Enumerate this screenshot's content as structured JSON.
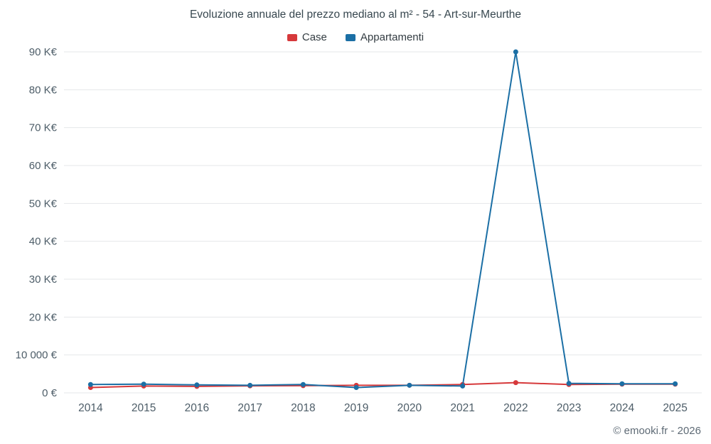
{
  "title": "Evoluzione annuale del prezzo mediano al m² - 54 - Art-sur-Meurthe",
  "footer": "© emooki.fr - 2026",
  "chart_data": {
    "type": "line",
    "title": "Evoluzione annuale del prezzo mediano al m² - 54 - Art-sur-Meurthe",
    "categories": [
      "2014",
      "2015",
      "2016",
      "2017",
      "2018",
      "2019",
      "2020",
      "2021",
      "2022",
      "2023",
      "2024",
      "2025"
    ],
    "series": [
      {
        "name": "Case",
        "color": "#d6393b",
        "values": [
          1400,
          1800,
          1700,
          1850,
          1900,
          2000,
          2000,
          2200,
          2700,
          2200,
          2300,
          2300
        ]
      },
      {
        "name": "Appartamenti",
        "color": "#1b6fa5",
        "values": [
          2200,
          2300,
          2100,
          2000,
          2200,
          1400,
          2000,
          1800,
          90000,
          2500,
          2400,
          2400
        ]
      }
    ],
    "xlabel": "",
    "ylabel": "",
    "ylim": [
      0,
      90000
    ],
    "y_ticks": [
      0,
      10000,
      20000,
      30000,
      40000,
      50000,
      60000,
      70000,
      80000,
      90000
    ],
    "y_tick_labels": [
      "0 €",
      "10 000 €",
      "20 K€",
      "30 K€",
      "40 K€",
      "50 K€",
      "60 K€",
      "70 K€",
      "80 K€",
      "90 K€"
    ],
    "grid": "horizontal",
    "legend_position": "top",
    "colors": {
      "grid_line": "#e4e7ea",
      "tick_label": "#4d5d68",
      "title_text": "#37474f",
      "footer_text": "#5f6b76"
    }
  }
}
